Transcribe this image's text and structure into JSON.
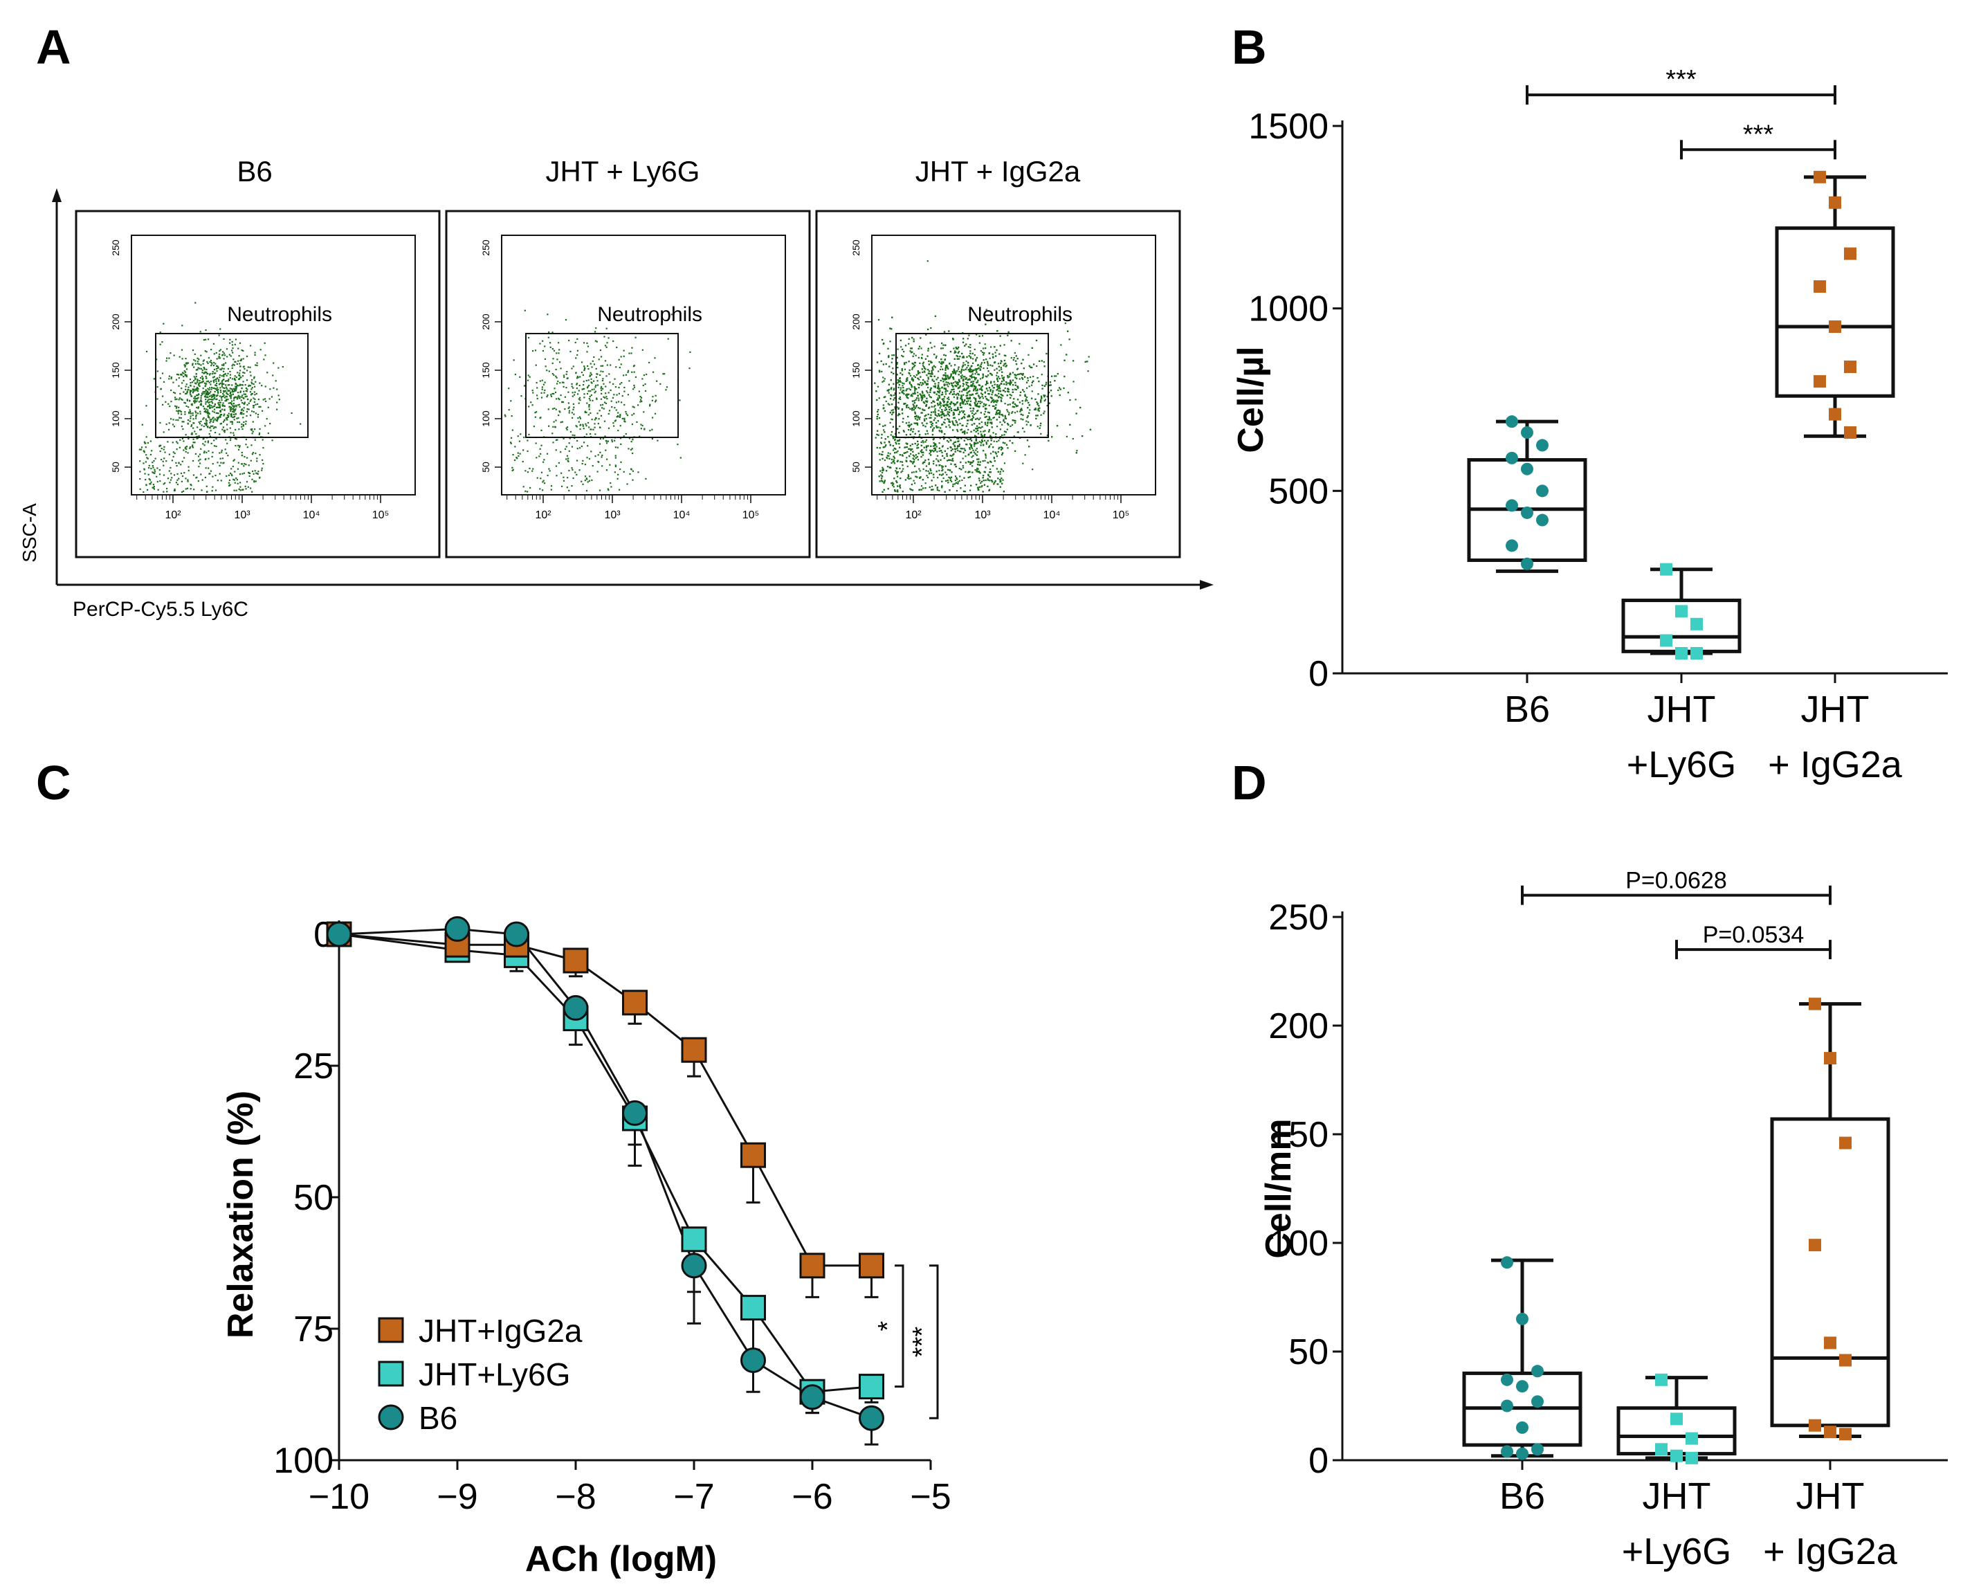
{
  "colors": {
    "b6": "#1a8a8a",
    "ly6g": "#3dcfc4",
    "igg2a": "#c0651a",
    "dots": "#1a6e1a",
    "ink": "#111111"
  },
  "panels": {
    "A": {
      "letter": "A",
      "y_axis_label": "SSC-A",
      "x_axis_label": "PerCP-Cy5.5 Ly6C",
      "gate_label": "Neutrophils",
      "y_ticks": [
        "50",
        "100",
        "150",
        "200",
        "250"
      ],
      "x_ticks": [
        "10²",
        "10³",
        "10⁴",
        "10⁵"
      ],
      "plots": [
        {
          "title": "B6",
          "density": "medium"
        },
        {
          "title": "JHT + Ly6G",
          "density": "low"
        },
        {
          "title": "JHT + IgG2a",
          "density": "high"
        }
      ]
    },
    "B": {
      "letter": "B",
      "chart_data": {
        "type": "box",
        "ylabel": "Cell/µl",
        "ylim": [
          0,
          1500
        ],
        "yticks": [
          "0",
          "500",
          "1000",
          "1500"
        ],
        "categories": [
          {
            "lines": [
              "B6"
            ]
          },
          {
            "lines": [
              "JHT",
              "+Ly6G"
            ]
          },
          {
            "lines": [
              "JHT",
              "+ IgG2a"
            ]
          }
        ],
        "groups": [
          {
            "name": "B6",
            "color_key": "b6",
            "marker": "circle",
            "min": 280,
            "q1": 310,
            "median": 450,
            "q3": 585,
            "max": 690,
            "points": [
              690,
              660,
              625,
              590,
              560,
              500,
              460,
              440,
              420,
              350,
              300
            ]
          },
          {
            "name": "JHT+Ly6G",
            "color_key": "ly6g",
            "marker": "square",
            "min": 55,
            "q1": 60,
            "median": 100,
            "q3": 200,
            "max": 285,
            "points": [
              285,
              170,
              135,
              90,
              55,
              55
            ]
          },
          {
            "name": "JHT+IgG2a",
            "color_key": "igg2a",
            "marker": "square",
            "min": 650,
            "q1": 760,
            "median": 950,
            "q3": 1220,
            "max": 1360,
            "points": [
              1360,
              1290,
              1150,
              1060,
              950,
              840,
              800,
              710,
              660
            ]
          }
        ],
        "brackets": [
          {
            "from": 0,
            "to": 2,
            "level": 1585,
            "label": "***"
          },
          {
            "from": 1,
            "to": 2,
            "level": 1435,
            "label": "***"
          }
        ]
      }
    },
    "C": {
      "letter": "C",
      "chart_data": {
        "type": "line",
        "xlabel": "ACh (logM)",
        "ylabel": "Relaxation (%)",
        "xlim": [
          -10,
          -5
        ],
        "ylim": [
          0,
          100
        ],
        "y_inverted": true,
        "xticks": [
          "−10",
          "−9",
          "−8",
          "−7",
          "−6",
          "−5"
        ],
        "yticks": [
          "0",
          "25",
          "50",
          "75",
          "100"
        ],
        "series": [
          {
            "name": "JHT+IgG2a",
            "color_key": "igg2a",
            "marker": "square",
            "x": [
              -10,
              -9,
              -8.5,
              -8,
              -7.5,
              -7,
              -6.5,
              -6,
              -5.5
            ],
            "y": [
              0,
              2,
              2,
              5,
              13,
              22,
              42,
              63,
              63
            ],
            "err": [
              0,
              1,
              2,
              3,
              4,
              5,
              9,
              6,
              6
            ]
          },
          {
            "name": "JHT+Ly6G",
            "color_key": "ly6g",
            "marker": "square",
            "x": [
              -10,
              -9,
              -8.5,
              -8,
              -7.5,
              -7,
              -6.5,
              -6,
              -5.5
            ],
            "y": [
              0,
              3,
              4,
              16,
              35,
              58,
              71,
              87,
              86
            ],
            "err": [
              0,
              2,
              3,
              5,
              9,
              10,
              8,
              4,
              3
            ]
          },
          {
            "name": "B6",
            "color_key": "b6",
            "marker": "circle",
            "x": [
              -10,
              -9,
              -8.5,
              -8,
              -7.5,
              -7,
              -6.5,
              -6,
              -5.5
            ],
            "y": [
              0,
              -1,
              0,
              14,
              34,
              63,
              81,
              88,
              92
            ],
            "err": [
              0,
              1,
              1,
              4,
              6,
              11,
              6,
              3,
              5
            ]
          }
        ],
        "significance": [
          {
            "from": 63,
            "to": 86,
            "label": "*"
          },
          {
            "from": 63,
            "to": 92,
            "label": "***"
          }
        ]
      }
    },
    "D": {
      "letter": "D",
      "chart_data": {
        "type": "box",
        "ylabel": "Cell/mm",
        "ylim": [
          0,
          250
        ],
        "yticks": [
          "0",
          "50",
          "100",
          "150",
          "200",
          "250"
        ],
        "categories": [
          {
            "lines": [
              "B6"
            ]
          },
          {
            "lines": [
              "JHT",
              "+Ly6G"
            ]
          },
          {
            "lines": [
              "JHT",
              "+ IgG2a"
            ]
          }
        ],
        "groups": [
          {
            "name": "B6",
            "color_key": "b6",
            "marker": "circle",
            "min": 2,
            "q1": 7,
            "median": 24,
            "q3": 40,
            "max": 92,
            "points": [
              91,
              65,
              41,
              37,
              34,
              27,
              25,
              15,
              5,
              4,
              3
            ]
          },
          {
            "name": "JHT+Ly6G",
            "color_key": "ly6g",
            "marker": "square",
            "min": 1,
            "q1": 3,
            "median": 11,
            "q3": 24,
            "max": 38,
            "points": [
              37,
              19,
              10,
              5,
              2,
              1
            ]
          },
          {
            "name": "JHT+IgG2a",
            "color_key": "igg2a",
            "marker": "square",
            "min": 11,
            "q1": 16,
            "median": 47,
            "q3": 157,
            "max": 210,
            "points": [
              210,
              185,
              146,
              99,
              54,
              46,
              16,
              13,
              12
            ]
          }
        ],
        "brackets": [
          {
            "from": 0,
            "to": 2,
            "level": 260,
            "label": "P=0.0628"
          },
          {
            "from": 1,
            "to": 2,
            "level": 235,
            "label": "P=0.0534"
          }
        ]
      }
    }
  }
}
